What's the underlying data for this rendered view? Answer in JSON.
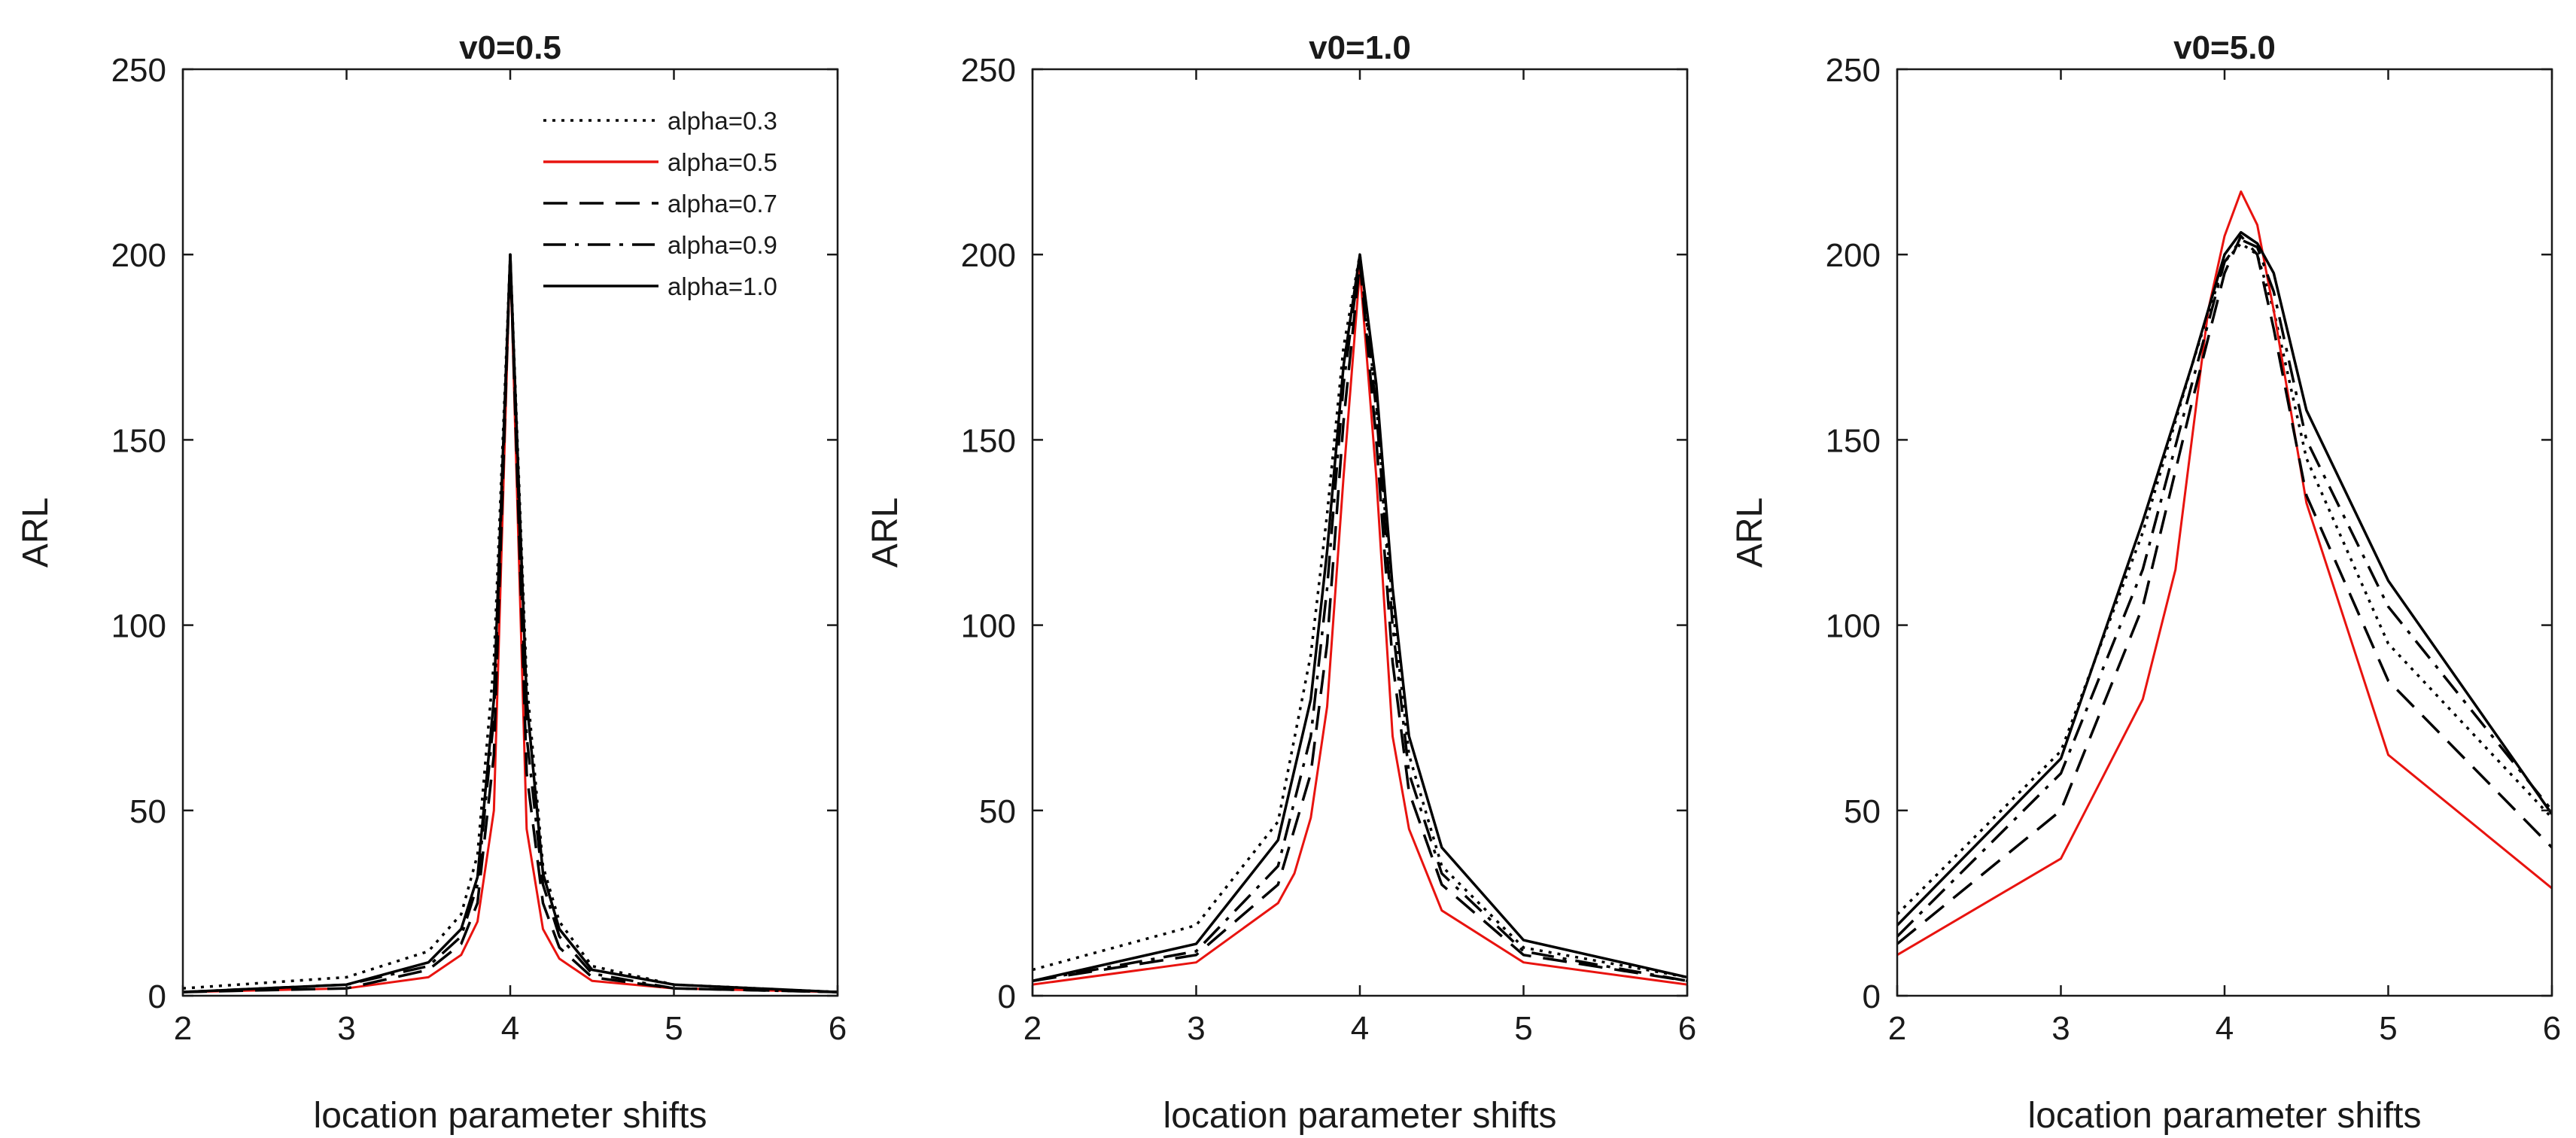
{
  "chart_data": [
    {
      "type": "line",
      "title": "v0=0.5",
      "xlabel": "location parameter shifts",
      "ylabel": "ARL",
      "xlim": [
        2,
        6
      ],
      "ylim": [
        0,
        250
      ],
      "xticks": [
        "2",
        "3",
        "4",
        "5",
        "6"
      ],
      "yticks": [
        "0",
        "50",
        "100",
        "150",
        "200",
        "250"
      ],
      "legend": {
        "position": "top-right"
      },
      "series": [
        {
          "name": "alpha=0.3",
          "style": "dotted",
          "color": "#000000",
          "x": [
            2,
            3,
            3.5,
            3.7,
            3.8,
            3.9,
            4,
            4.1,
            4.2,
            4.3,
            4.5,
            5,
            6
          ],
          "y": [
            2,
            5,
            12,
            22,
            38,
            90,
            200,
            85,
            35,
            20,
            8,
            3,
            1
          ]
        },
        {
          "name": "alpha=0.5",
          "style": "solid",
          "color": "#e8130f",
          "x": [
            2,
            3,
            3.5,
            3.7,
            3.8,
            3.9,
            4,
            4.1,
            4.2,
            4.3,
            4.5,
            5,
            6
          ],
          "y": [
            1,
            2,
            5,
            11,
            20,
            50,
            200,
            45,
            18,
            10,
            4,
            2,
            1
          ]
        },
        {
          "name": "alpha=0.7",
          "style": "dashed",
          "color": "#000000",
          "x": [
            2,
            3,
            3.5,
            3.7,
            3.8,
            3.9,
            4,
            4.1,
            4.2,
            4.3,
            4.5,
            5,
            6
          ],
          "y": [
            1,
            2,
            7,
            14,
            25,
            65,
            200,
            60,
            25,
            13,
            5,
            2,
            1
          ]
        },
        {
          "name": "alpha=0.9",
          "style": "dashdot",
          "color": "#000000",
          "x": [
            2,
            3,
            3.5,
            3.7,
            3.8,
            3.9,
            4,
            4.1,
            4.2,
            4.3,
            4.5,
            5,
            6
          ],
          "y": [
            1,
            3,
            8,
            16,
            30,
            75,
            200,
            70,
            30,
            16,
            6,
            2,
            1
          ]
        },
        {
          "name": "alpha=1.0",
          "style": "solid",
          "color": "#000000",
          "x": [
            2,
            3,
            3.5,
            3.7,
            3.8,
            3.9,
            4,
            4.1,
            4.2,
            4.3,
            4.5,
            5,
            6
          ],
          "y": [
            1,
            3,
            9,
            18,
            32,
            80,
            200,
            80,
            33,
            18,
            7,
            3,
            1
          ]
        }
      ]
    },
    {
      "type": "line",
      "title": "v0=1.0",
      "xlabel": "location parameter shifts",
      "ylabel": "ARL",
      "xlim": [
        2,
        6
      ],
      "ylim": [
        0,
        250
      ],
      "xticks": [
        "2",
        "3",
        "4",
        "5",
        "6"
      ],
      "yticks": [
        "0",
        "50",
        "100",
        "150",
        "200",
        "250"
      ],
      "series": [
        {
          "name": "alpha=0.3",
          "style": "dotted",
          "color": "#000000",
          "x": [
            2,
            3,
            3.5,
            3.7,
            3.8,
            3.9,
            4,
            4.1,
            4.2,
            4.3,
            4.5,
            5,
            6
          ],
          "y": [
            7,
            19,
            47,
            92,
            130,
            175,
            200,
            160,
            105,
            65,
            35,
            13,
            5
          ]
        },
        {
          "name": "alpha=0.5",
          "style": "solid",
          "color": "#e8130f",
          "x": [
            2,
            3,
            3.5,
            3.6,
            3.7,
            3.8,
            3.9,
            4,
            4.1,
            4.2,
            4.3,
            4.5,
            5,
            6
          ],
          "y": [
            3,
            9,
            25,
            33,
            48,
            78,
            140,
            196,
            140,
            70,
            45,
            23,
            9,
            3
          ]
        },
        {
          "name": "alpha=0.7",
          "style": "dashed",
          "color": "#000000",
          "x": [
            2,
            3,
            3.5,
            3.7,
            3.8,
            3.9,
            4,
            4.1,
            4.2,
            4.3,
            4.5,
            5,
            6
          ],
          "y": [
            4,
            11,
            30,
            60,
            95,
            155,
            198,
            150,
            90,
            55,
            30,
            11,
            4
          ]
        },
        {
          "name": "alpha=0.9",
          "style": "dashdot",
          "color": "#000000",
          "x": [
            2,
            3,
            3.5,
            3.7,
            3.8,
            3.9,
            4,
            4.1,
            4.2,
            4.3,
            4.5,
            5,
            6
          ],
          "y": [
            4,
            12,
            35,
            70,
            110,
            165,
            199,
            158,
            100,
            60,
            33,
            12,
            4
          ]
        },
        {
          "name": "alpha=1.0",
          "style": "solid",
          "color": "#000000",
          "x": [
            2,
            3,
            3.5,
            3.7,
            3.8,
            3.9,
            4,
            4.1,
            4.2,
            4.3,
            4.5,
            5,
            6
          ],
          "y": [
            4,
            14,
            42,
            80,
            120,
            170,
            200,
            165,
            110,
            70,
            40,
            15,
            5
          ]
        }
      ]
    },
    {
      "type": "line",
      "title": "v0=5.0",
      "xlabel": "location parameter shifts",
      "ylabel": "ARL",
      "xlim": [
        2,
        6
      ],
      "ylim": [
        0,
        250
      ],
      "xticks": [
        "2",
        "3",
        "4",
        "5",
        "6"
      ],
      "yticks": [
        "0",
        "50",
        "100",
        "150",
        "200",
        "250"
      ],
      "series": [
        {
          "name": "alpha=0.3",
          "style": "dotted",
          "color": "#000000",
          "x": [
            2,
            3,
            3.5,
            3.8,
            4,
            4.1,
            4.2,
            4.3,
            4.5,
            5,
            6
          ],
          "y": [
            22,
            66,
            125,
            170,
            198,
            203,
            200,
            185,
            145,
            95,
            48
          ]
        },
        {
          "name": "alpha=0.5",
          "style": "solid",
          "color": "#e8130f",
          "x": [
            2,
            3,
            3.5,
            3.7,
            3.8,
            3.9,
            4,
            4.1,
            4.2,
            4.3,
            4.5,
            5,
            6
          ],
          "y": [
            11,
            37,
            80,
            115,
            150,
            185,
            205,
            217,
            208,
            185,
            133,
            65,
            29
          ]
        },
        {
          "name": "alpha=0.7",
          "style": "dashed",
          "color": "#000000",
          "x": [
            2,
            3,
            3.5,
            3.8,
            4,
            4.1,
            4.2,
            4.3,
            4.5,
            5,
            6
          ],
          "y": [
            14,
            50,
            105,
            160,
            195,
            205,
            200,
            180,
            135,
            85,
            40
          ]
        },
        {
          "name": "alpha=0.9",
          "style": "dashdot",
          "color": "#000000",
          "x": [
            2,
            3,
            3.5,
            3.8,
            4,
            4.1,
            4.2,
            4.3,
            4.5,
            5,
            6
          ],
          "y": [
            16,
            60,
            115,
            165,
            198,
            204,
            202,
            190,
            150,
            105,
            50
          ]
        },
        {
          "name": "alpha=1.0",
          "style": "solid",
          "color": "#000000",
          "x": [
            2,
            3,
            3.5,
            3.8,
            4,
            4.1,
            4.2,
            4.3,
            4.5,
            5,
            6
          ],
          "y": [
            19,
            64,
            128,
            170,
            200,
            206,
            203,
            195,
            158,
            112,
            49
          ]
        }
      ]
    }
  ]
}
